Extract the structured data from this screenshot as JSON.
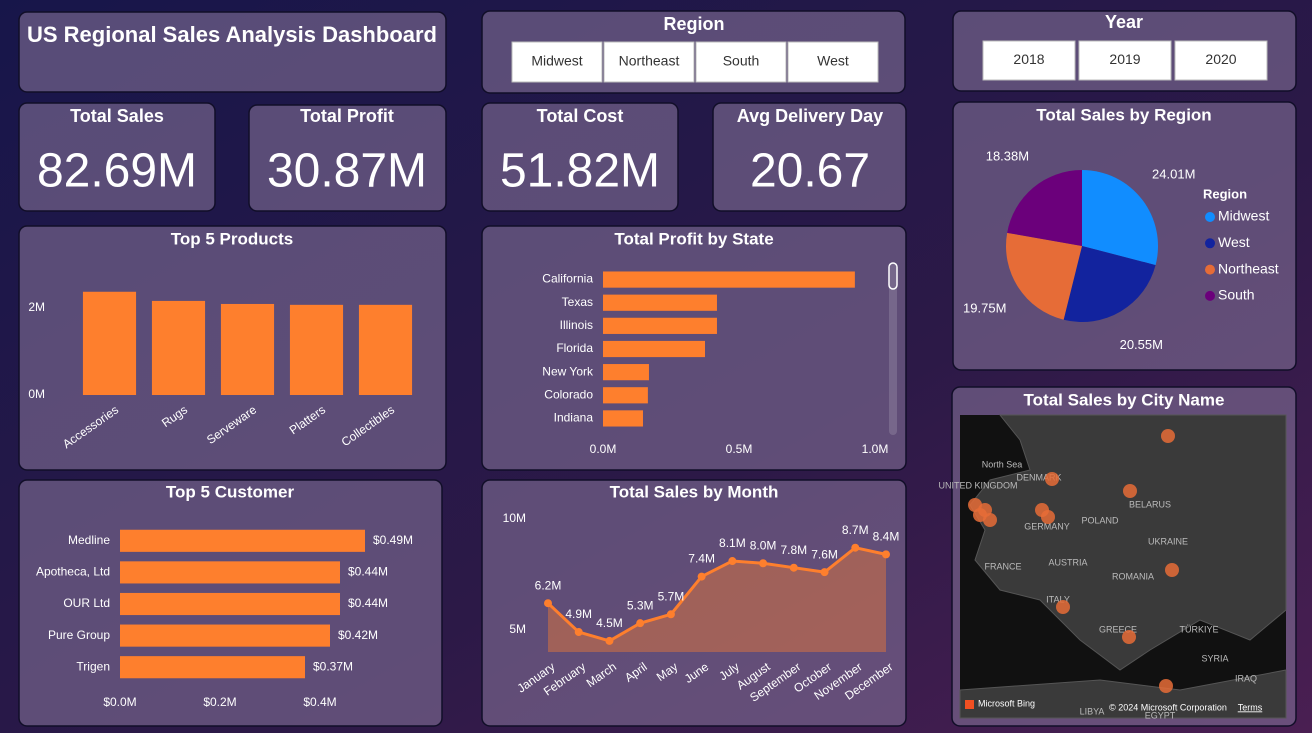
{
  "header": {
    "title": "US Regional Sales Analysis Dashboard"
  },
  "slicers": [
    {
      "title": "Region",
      "options": [
        "Midwest",
        "Northeast",
        "South",
        "West"
      ]
    },
    {
      "title": "Year",
      "options": [
        "2018",
        "2019",
        "2020"
      ]
    }
  ],
  "kpis": [
    {
      "label": "Total Sales",
      "value": "82.69M"
    },
    {
      "label": "Total Profit",
      "value": "30.87M"
    },
    {
      "label": "Total Cost",
      "value": "51.82M"
    },
    {
      "label": "Avg Delivery Day",
      "value": "20.67"
    }
  ],
  "chart_data": [
    {
      "type": "bar",
      "title": "Top 5 Products",
      "categories": [
        "Accessories",
        "Rugs",
        "Serveware",
        "Platters",
        "Collectibles"
      ],
      "values": [
        2370000,
        2160000,
        2090000,
        2070000,
        2070000
      ],
      "color": "#fe7f2d",
      "ylim": [
        0,
        2640000
      ],
      "yticks": [
        {
          "value": 0,
          "label": "0M"
        },
        {
          "value": 2000000,
          "label": "2M"
        }
      ]
    },
    {
      "type": "bar",
      "orientation": "horizontal",
      "title": "Total Profit by State",
      "categories": [
        "California",
        "Texas",
        "Illinois",
        "Florida",
        "New York",
        "Colorado",
        "Indiana"
      ],
      "values": [
        926000,
        419000,
        419000,
        375000,
        169000,
        165000,
        147000
      ],
      "color": "#fe7f2d",
      "xlim": [
        0,
        1000000
      ],
      "xticks": [
        {
          "value": 0,
          "label": "0.0M"
        },
        {
          "value": 500000,
          "label": "0.5M"
        },
        {
          "value": 1000000,
          "label": "1.0M"
        }
      ]
    },
    {
      "type": "bar",
      "orientation": "horizontal",
      "title": "Top 5 Customer",
      "categories": [
        "Medline",
        "Apotheca, Ltd",
        "OUR Ltd",
        "Pure Group",
        "Trigen"
      ],
      "values": [
        490000,
        440000,
        440000,
        420000,
        370000
      ],
      "value_labels": [
        "$0.49M",
        "$0.44M",
        "$0.44M",
        "$0.42M",
        "$0.37M"
      ],
      "color": "#fe7f2d",
      "xlim": [
        0,
        640000
      ],
      "xticks": [
        {
          "value": 0,
          "label": "$0.0M"
        },
        {
          "value": 200000,
          "label": "$0.2M"
        },
        {
          "value": 400000,
          "label": "$0.4M"
        }
      ]
    },
    {
      "type": "line",
      "title": "Total Sales by Month",
      "area": true,
      "categories": [
        "January",
        "February",
        "March",
        "April",
        "May",
        "June",
        "July",
        "August",
        "September",
        "October",
        "November",
        "December"
      ],
      "values": [
        6200000,
        4900000,
        4500000,
        5300000,
        5700000,
        7400000,
        8100000,
        8000000,
        7800000,
        7600000,
        8700000,
        8400000
      ],
      "value_labels": [
        "6.2M",
        "4.9M",
        "4.5M",
        "5.3M",
        "5.7M",
        "7.4M",
        "8.1M",
        "8.0M",
        "7.8M",
        "7.6M",
        "8.7M",
        "8.4M"
      ],
      "color": "#fe7f2d",
      "ylim": [
        4000000,
        10400000
      ],
      "yticks": [
        {
          "value": 5000000,
          "label": "5M"
        },
        {
          "value": 10000000,
          "label": "10M"
        }
      ]
    },
    {
      "type": "pie",
      "title": "Total Sales by Region",
      "legend_title": "Region",
      "categories": [
        "Midwest",
        "West",
        "Northeast",
        "South"
      ],
      "values": [
        24010000,
        20550000,
        19750000,
        18380000
      ],
      "value_labels": [
        "24.01M",
        "20.55M",
        "19.75M",
        "18.38M"
      ],
      "colors": [
        "#118dff",
        "#12239e",
        "#e66c37",
        "#6b007b"
      ]
    }
  ],
  "map": {
    "title": "Total Sales by City Name",
    "labels": [
      "North Sea",
      "DENMARK",
      "UNITED KINGDOM",
      "BELARUS",
      "POLAND",
      "GERMANY",
      "UKRAINE",
      "FRANCE",
      "AUSTRIA",
      "ROMANIA",
      "ITALY",
      "GREECE",
      "TÜRKIYE",
      "SYRIA",
      "IRAQ",
      "LIBYA",
      "EGYPT"
    ],
    "attribution": [
      "Microsoft Bing",
      "© 2024 Microsoft Corporation",
      "Terms"
    ]
  }
}
